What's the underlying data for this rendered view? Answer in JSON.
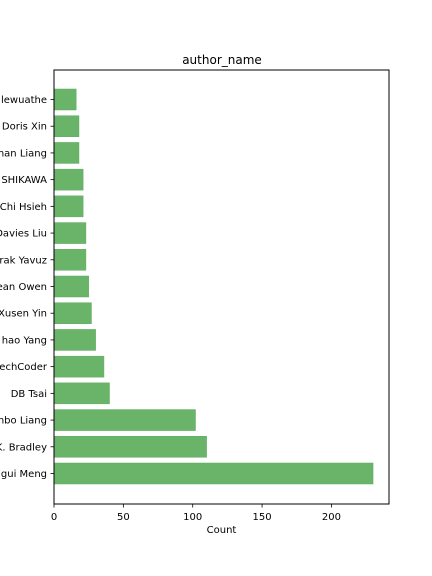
{
  "chart_data": {
    "type": "bar",
    "orientation": "horizontal",
    "title": "author_name",
    "xlabel": "Count",
    "ylabel": "",
    "categories": [
      "Xiangrui Meng",
      "Joseph K. Bradley",
      "Yanbo Liang",
      "DB Tsai",
      "MLnick / TechCoder",
      "Ruifeng Chao Yang",
      "Xusen Yin",
      "Sean Owen",
      "Burak Yavuz",
      "Davies Liu",
      "Feng-Chi Hsieh",
      "Kousuke SHIKAWA",
      "Zhenhan Liang",
      "Doris Xin",
      "Holden Karau / Ilewuathe"
    ],
    "display_labels": [
      "gui Meng",
      "K. Bradley",
      "nbo Liang",
      "DB Tsai",
      "echCoder",
      "hao Yang",
      "Xusen Yin",
      "ean Owen",
      "rak Yavuz",
      "Davies Liu",
      "Chi Hsieh",
      "SHIKAWA",
      "han Liang",
      "Doris Xin",
      "lewuathe"
    ],
    "values": [
      230,
      110,
      102,
      40,
      36,
      30,
      27,
      25,
      23,
      23,
      21,
      21,
      18,
      18,
      16
    ],
    "xlim": [
      0,
      241.5
    ],
    "xticks": [
      0,
      50,
      100,
      150,
      200
    ],
    "grid": false,
    "legend": "none",
    "bar_color": "#6ab46a",
    "bar_edge_color": "#5fa95f"
  }
}
